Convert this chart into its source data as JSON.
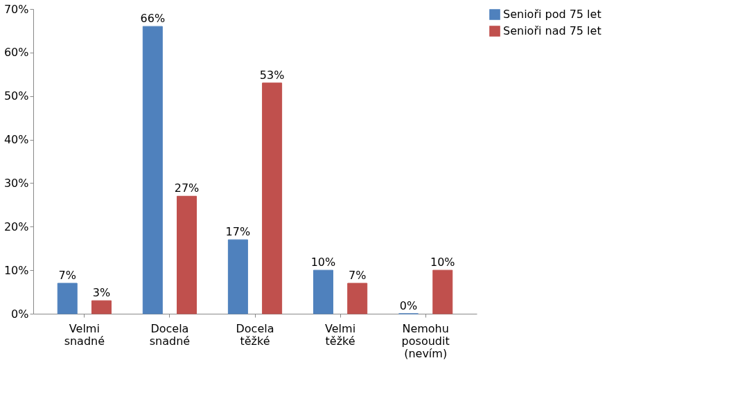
{
  "chart_data": {
    "type": "bar",
    "categories": [
      "Velmi snadné",
      "Docela snadné",
      "Docela těžké",
      "Velmi těžké",
      "Nemohu posoudit (nevím)"
    ],
    "series": [
      {
        "name": "Senioři pod 75 let",
        "color": "#4f81bd",
        "values": [
          7,
          66,
          17,
          10,
          0
        ],
        "value_labels": [
          "7%",
          "66%",
          "17%",
          "10%",
          "0%"
        ]
      },
      {
        "name": "Senioři nad 75 let",
        "color": "#c0504d",
        "values": [
          3,
          27,
          53,
          7,
          10
        ],
        "value_labels": [
          "3%",
          "27%",
          "53%",
          "7%",
          "10%"
        ]
      }
    ],
    "ylim": [
      0,
      70
    ],
    "yticks": [
      {
        "value": 0,
        "label": "0%"
      },
      {
        "value": 10,
        "label": "10%"
      },
      {
        "value": 20,
        "label": "20%"
      },
      {
        "value": 30,
        "label": "30%"
      },
      {
        "value": 40,
        "label": "40%"
      },
      {
        "value": 50,
        "label": "50%"
      },
      {
        "value": 60,
        "label": "60%"
      },
      {
        "value": 70,
        "label": "70%"
      }
    ],
    "grid": false,
    "legend": "right"
  }
}
